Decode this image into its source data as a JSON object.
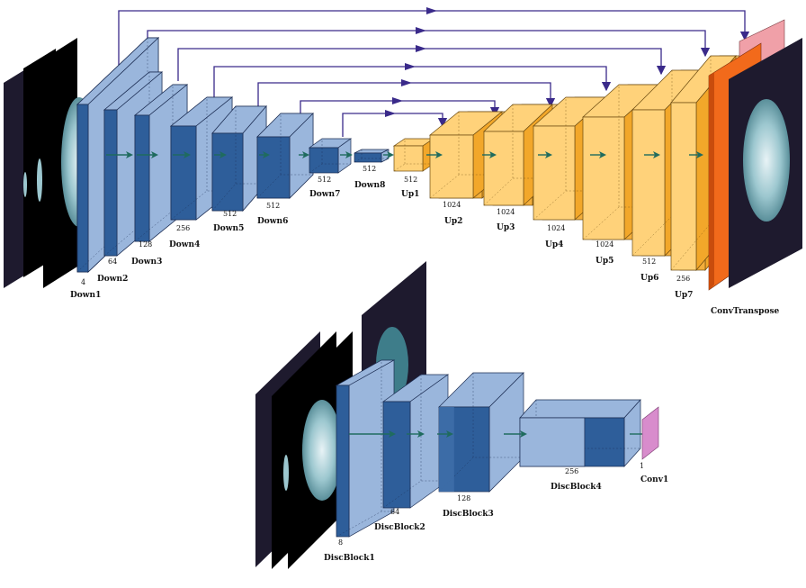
{
  "generator": {
    "blocks": [
      {
        "id": "down1",
        "label": "Down1",
        "channels": "4",
        "kind": "enc"
      },
      {
        "id": "down2",
        "label": "Down2",
        "channels": "64",
        "kind": "enc"
      },
      {
        "id": "down3",
        "label": "Down3",
        "channels": "128",
        "kind": "enc"
      },
      {
        "id": "down4",
        "label": "Down4",
        "channels": "256",
        "kind": "enc"
      },
      {
        "id": "down5",
        "label": "Down5",
        "channels": "512",
        "kind": "enc"
      },
      {
        "id": "down6",
        "label": "Down6",
        "channels": "512",
        "kind": "enc"
      },
      {
        "id": "down7",
        "label": "Down7",
        "channels": "512",
        "kind": "enc"
      },
      {
        "id": "down8",
        "label": "Down8",
        "channels": "512",
        "kind": "enc"
      },
      {
        "id": "up1",
        "label": "Up1",
        "channels": "512",
        "kind": "dec"
      },
      {
        "id": "up2",
        "label": "Up2",
        "channels": "1024",
        "kind": "dec"
      },
      {
        "id": "up3",
        "label": "Up3",
        "channels": "1024",
        "kind": "dec"
      },
      {
        "id": "up4",
        "label": "Up4",
        "channels": "1024",
        "kind": "dec"
      },
      {
        "id": "up5",
        "label": "Up5",
        "channels": "1024",
        "kind": "dec"
      },
      {
        "id": "up6",
        "label": "Up6",
        "channels": "512",
        "kind": "dec"
      },
      {
        "id": "up7",
        "label": "Up7",
        "channels": "256",
        "kind": "dec"
      }
    ],
    "output_layer": {
      "label": "ConvTranspose"
    },
    "skip_connections": [
      [
        "down1",
        "up7"
      ],
      [
        "down2",
        "up6"
      ],
      [
        "down3",
        "up5"
      ],
      [
        "down4",
        "up4"
      ],
      [
        "down5",
        "up3"
      ],
      [
        "down6",
        "up2"
      ],
      [
        "down7",
        "up1"
      ]
    ]
  },
  "discriminator": {
    "blocks": [
      {
        "id": "disc1",
        "label": "DiscBlock1",
        "channels": "8"
      },
      {
        "id": "disc2",
        "label": "DiscBlock2",
        "channels": "64"
      },
      {
        "id": "disc3",
        "label": "DiscBlock3",
        "channels": "128"
      },
      {
        "id": "disc4",
        "label": "DiscBlock4",
        "channels": "256"
      }
    ],
    "output_layer": {
      "label": "Conv1",
      "channels": "1"
    }
  },
  "colors": {
    "encoder_front": "#2e5e9a",
    "encoder_light": "#9ab6dc",
    "decoder_front": "#ffd27a",
    "decoder_dark": "#f2a72a",
    "output_front": "#f26a1b",
    "output_back": "#f0a0a8",
    "conv1": "#d88ccc",
    "skip_arrow": "#3a2a8a",
    "flow_arrow": "#1f6b5e",
    "mri_background": "#1e1a2e"
  }
}
